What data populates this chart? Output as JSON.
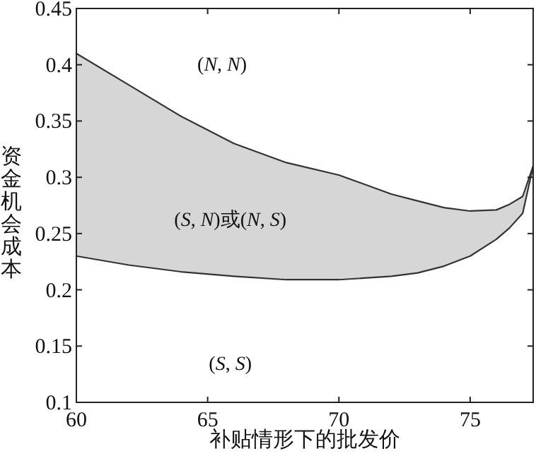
{
  "chart_data": {
    "type": "line",
    "xlabel": "补贴情形下的批发价",
    "ylabel": "资金机会成本",
    "x": [
      60,
      62,
      64,
      66,
      68,
      70,
      72,
      73,
      74,
      75,
      76,
      76.5,
      77,
      77.4
    ],
    "series": [
      {
        "type": "line",
        "color": "#333333",
        "values": [
          0.41,
          0.382,
          0.354,
          0.33,
          0.313,
          0.302,
          0.285,
          0.279,
          0.273,
          0.27,
          0.271,
          0.276,
          0.283,
          0.31
        ],
        "lower": [
          0.23,
          0.222,
          0.216,
          0.212,
          0.209,
          0.209,
          0.212,
          0.215,
          0.221,
          0.23,
          0.245,
          0.255,
          0.268,
          0.31
        ],
        "upper": [
          0.41,
          0.382,
          0.354,
          0.33,
          0.313,
          0.302,
          0.285,
          0.279,
          0.273,
          0.27,
          0.271,
          0.276,
          0.283,
          0.31
        ]
      },
      {
        "type": "line",
        "color": "#333333",
        "values": [
          0.23,
          0.222,
          0.216,
          0.212,
          0.209,
          0.209,
          0.212,
          0.215,
          0.221,
          0.23,
          0.245,
          0.255,
          0.268,
          0.31
        ]
      }
    ],
    "xlim": [
      60,
      77.4
    ],
    "ylim": [
      0.1,
      0.45
    ],
    "xticks": [
      60,
      65,
      70,
      75
    ],
    "yticks": [
      0.1,
      0.15,
      0.2,
      0.25,
      0.3,
      0.35,
      0.4,
      0.45
    ],
    "annotations": [
      "(N, N)",
      "(S, N)或(N, S)",
      "(S, S)"
    ],
    "grid": false,
    "marker": "none",
    "line_style": "solid"
  }
}
